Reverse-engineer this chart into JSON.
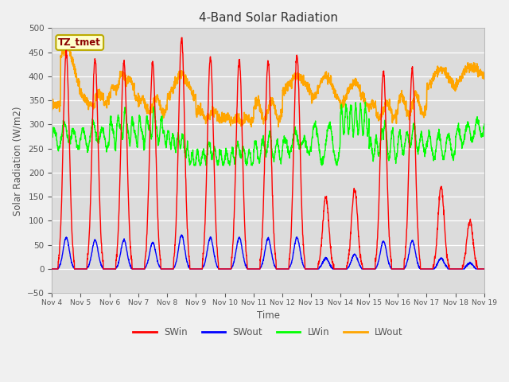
{
  "title": "4-Band Solar Radiation",
  "xlabel": "Time",
  "ylabel": "Solar Radiation (W/m2)",
  "ylim": [
    -50,
    500
  ],
  "xlim": [
    0,
    15
  ],
  "background_color": "#dcdcdc",
  "fig_bg_color": "#f0f0f0",
  "legend_labels": [
    "SWin",
    "SWout",
    "LWin",
    "LWout"
  ],
  "legend_colors": [
    "red",
    "blue",
    "lime",
    "orange"
  ],
  "label_color": "#555555",
  "annotation_text": "TZ_tmet",
  "annotation_bg": "#ffffcc",
  "annotation_border": "#bbaa00",
  "yticks": [
    -50,
    0,
    50,
    100,
    150,
    200,
    250,
    300,
    350,
    400,
    450,
    500
  ],
  "xtick_labels": [
    "Nov 4",
    "Nov 5",
    "Nov 6",
    "Nov 7",
    "Nov 8",
    "Nov 9",
    "Nov 10",
    "Nov 11",
    "Nov 12",
    "Nov 13",
    "Nov 14",
    "Nov 15",
    "Nov 16",
    "Nov 17",
    "Nov 18",
    "Nov 19"
  ],
  "xtick_positions": [
    0,
    1,
    2,
    3,
    4,
    5,
    6,
    7,
    8,
    9,
    10,
    11,
    12,
    13,
    14,
    15
  ]
}
